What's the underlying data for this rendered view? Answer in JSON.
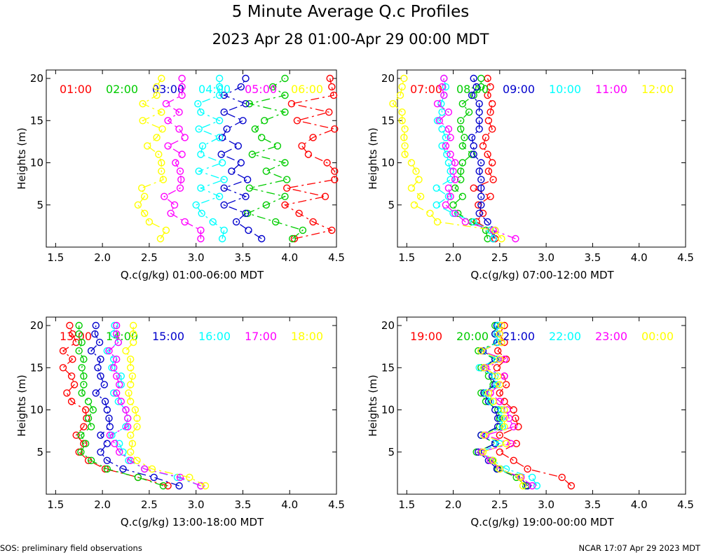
{
  "figure": {
    "title": "5 Minute Average Q.c Profiles",
    "subtitle": "2023 Apr 28 01:00-Apr 29 00:00 MDT",
    "footer_left": "SOS: preliminary field observations",
    "footer_right": "NCAR 17:07 Apr 29 2023 MDT"
  },
  "chart_data": [
    {
      "type": "scatter",
      "xlabel": "Q.c(g/kg) 01:00-06:00 MDT",
      "ylabel": "Heights (m)",
      "xlim": [
        1.4,
        4.5
      ],
      "ylim": [
        0,
        21
      ],
      "xticks": [
        "1.5",
        "2.0",
        "2.5",
        "3.0",
        "3.5",
        "4.0",
        "4.5"
      ],
      "yticks": [
        "5",
        "10",
        "15",
        "20"
      ],
      "heights": [
        1,
        2,
        3,
        4,
        5,
        6,
        7,
        8,
        9,
        10,
        11,
        12,
        13,
        14,
        15,
        16,
        17,
        18,
        19,
        20
      ],
      "series": [
        {
          "name": "01:00",
          "color": "#ff0000",
          "values": [
            4.05,
            4.45,
            4.25,
            4.1,
            3.95,
            4.38,
            3.97,
            4.48,
            4.48,
            4.4,
            4.2,
            4.13,
            4.25,
            4.48,
            4.08,
            4.42,
            4.02,
            4.47,
            4.45,
            4.43
          ]
        },
        {
          "name": "02:00",
          "color": "#00cc00",
          "values": [
            4.03,
            4.14,
            3.85,
            3.55,
            3.75,
            3.95,
            3.57,
            3.97,
            3.75,
            3.95,
            3.6,
            3.87,
            3.7,
            3.63,
            3.73,
            3.95,
            3.57,
            3.95,
            3.82,
            3.95
          ]
        },
        {
          "name": "03:00",
          "color": "#0000cc",
          "values": [
            3.7,
            3.56,
            3.43,
            3.53,
            3.3,
            3.53,
            3.3,
            3.55,
            3.38,
            3.48,
            3.27,
            3.45,
            3.28,
            3.33,
            3.5,
            3.3,
            3.53,
            3.3,
            3.48,
            3.53
          ]
        },
        {
          "name": "04:00",
          "color": "#00ffff",
          "values": [
            3.28,
            3.3,
            3.18,
            3.06,
            3.0,
            3.25,
            3.05,
            3.3,
            3.03,
            3.28,
            3.05,
            3.07,
            3.25,
            3.03,
            3.25,
            3.05,
            3.02,
            3.25,
            3.25,
            3.25
          ]
        },
        {
          "name": "05:00",
          "color": "#ff00ff",
          "values": [
            3.05,
            3.05,
            2.88,
            2.73,
            2.77,
            2.66,
            2.83,
            2.84,
            2.83,
            2.78,
            2.85,
            2.7,
            2.88,
            2.82,
            2.7,
            2.82,
            2.68,
            2.85,
            2.85,
            2.85
          ]
        },
        {
          "name": "06:00",
          "color": "#ffff00",
          "values": [
            2.62,
            2.68,
            2.5,
            2.45,
            2.38,
            2.45,
            2.42,
            2.65,
            2.63,
            2.63,
            2.6,
            2.48,
            2.58,
            2.64,
            2.43,
            2.63,
            2.43,
            2.58,
            2.58,
            2.63
          ]
        }
      ]
    },
    {
      "type": "scatter",
      "xlabel": "Q.c(g/kg) 07:00-12:00 MDT",
      "ylabel": "Heights (m)",
      "xlim": [
        1.4,
        4.5
      ],
      "ylim": [
        0,
        21
      ],
      "xticks": [
        "1.5",
        "2.0",
        "2.5",
        "3.0",
        "3.5",
        "4.0",
        "4.5"
      ],
      "yticks": [
        "5",
        "10",
        "15",
        "20"
      ],
      "heights": [
        1,
        2,
        3,
        4,
        5,
        6,
        7,
        8,
        9,
        10,
        11,
        12,
        13,
        14,
        15,
        16,
        17,
        18,
        19,
        20
      ],
      "series": [
        {
          "name": "07:00",
          "color": "#ff0000",
          "values": [
            2.45,
            2.4,
            2.25,
            2.32,
            2.27,
            2.4,
            2.22,
            2.43,
            2.38,
            2.42,
            2.37,
            2.32,
            2.35,
            2.42,
            2.38,
            2.4,
            2.42,
            2.37,
            2.4,
            2.37
          ]
        },
        {
          "name": "08:00",
          "color": "#00cc00",
          "values": [
            2.37,
            2.35,
            2.2,
            2.05,
            2.0,
            2.1,
            2.02,
            2.08,
            2.08,
            2.1,
            2.2,
            2.1,
            2.12,
            2.08,
            2.08,
            2.17,
            2.1,
            2.22,
            2.3,
            2.3
          ]
        },
        {
          "name": "09:00",
          "color": "#0000cc",
          "values": [
            2.43,
            2.45,
            2.37,
            2.28,
            2.3,
            2.3,
            2.3,
            2.3,
            2.28,
            2.3,
            2.22,
            2.22,
            2.2,
            2.28,
            2.28,
            2.28,
            2.28,
            2.2,
            2.25,
            2.22
          ]
        },
        {
          "name": "10:00",
          "color": "#00ffff",
          "values": [
            2.43,
            2.4,
            2.22,
            2.0,
            1.82,
            1.95,
            1.82,
            1.97,
            1.97,
            1.95,
            1.93,
            1.88,
            1.92,
            1.88,
            1.83,
            1.88,
            1.87,
            1.9,
            1.92,
            1.9
          ]
        },
        {
          "name": "11:00",
          "color": "#ff00ff",
          "values": [
            2.67,
            2.43,
            2.13,
            2.02,
            1.92,
            1.97,
            1.95,
            2.02,
            2.0,
            2.02,
            1.97,
            1.92,
            1.97,
            1.95,
            1.85,
            1.95,
            1.83,
            1.9,
            1.88,
            1.9
          ]
        },
        {
          "name": "12:00",
          "color": "#ffff00",
          "values": [
            2.52,
            2.45,
            1.83,
            1.75,
            1.58,
            1.65,
            1.55,
            1.63,
            1.6,
            1.55,
            1.48,
            1.48,
            1.47,
            1.48,
            1.45,
            1.45,
            1.35,
            1.43,
            1.45,
            1.47
          ]
        }
      ]
    },
    {
      "type": "scatter",
      "xlabel": "Q.c(g/kg) 13:00-18:00 MDT",
      "ylabel": "Heights (m)",
      "xlim": [
        1.4,
        4.5
      ],
      "ylim": [
        0,
        21
      ],
      "xticks": [
        "1.5",
        "2.0",
        "2.5",
        "3.0",
        "3.5",
        "4.0",
        "4.5"
      ],
      "yticks": [
        "5",
        "10",
        "15",
        "20"
      ],
      "heights": [
        1,
        2,
        3,
        4,
        5,
        6,
        7,
        8,
        9,
        10,
        11,
        12,
        13,
        14,
        15,
        16,
        17,
        18,
        19,
        20
      ],
      "series": [
        {
          "name": "13:00",
          "color": "#ff0000",
          "values": [
            2.7,
            2.38,
            2.03,
            1.85,
            1.75,
            1.8,
            1.72,
            1.8,
            1.83,
            1.82,
            1.67,
            1.62,
            1.7,
            1.67,
            1.58,
            1.68,
            1.58,
            1.72,
            1.68,
            1.65
          ]
        },
        {
          "name": "14:00",
          "color": "#00cc00",
          "values": [
            2.65,
            2.38,
            2.05,
            1.88,
            1.77,
            1.82,
            1.77,
            1.88,
            1.85,
            1.9,
            1.85,
            1.78,
            1.8,
            1.8,
            1.78,
            1.8,
            1.75,
            1.78,
            1.75,
            1.75
          ]
        },
        {
          "name": "15:00",
          "color": "#0000cc",
          "values": [
            2.82,
            2.55,
            2.22,
            2.05,
            1.98,
            2.05,
            1.98,
            2.08,
            2.07,
            2.05,
            2.03,
            1.93,
            2.02,
            1.98,
            1.95,
            1.98,
            1.88,
            1.97,
            1.92,
            1.93
          ]
        },
        {
          "name": "16:00",
          "color": "#00ffff",
          "values": [
            3.05,
            2.8,
            2.45,
            2.28,
            2.22,
            2.18,
            2.1,
            2.25,
            2.27,
            2.25,
            2.17,
            2.12,
            2.2,
            2.2,
            2.1,
            2.12,
            2.05,
            2.17,
            2.12,
            2.13
          ]
        },
        {
          "name": "17:00",
          "color": "#ff00ff",
          "values": [
            3.05,
            2.83,
            2.45,
            2.3,
            2.18,
            2.13,
            2.08,
            2.27,
            2.27,
            2.25,
            2.2,
            2.15,
            2.18,
            2.15,
            2.12,
            2.15,
            2.07,
            2.17,
            2.15,
            2.15
          ]
        },
        {
          "name": "18:00",
          "color": "#ffff00",
          "values": [
            3.1,
            2.93,
            2.53,
            2.37,
            2.3,
            2.32,
            2.3,
            2.37,
            2.37,
            2.35,
            2.3,
            2.28,
            2.3,
            2.32,
            2.3,
            2.3,
            2.25,
            2.33,
            2.33,
            2.33
          ]
        }
      ]
    },
    {
      "type": "scatter",
      "xlabel": "Q.c(g/kg) 19:00-00:00 MDT",
      "ylabel": "Heights (m)",
      "xlim": [
        1.4,
        4.5
      ],
      "ylim": [
        0,
        21
      ],
      "xticks": [
        "1.5",
        "2.0",
        "2.5",
        "3.0",
        "3.5",
        "4.0",
        "4.5"
      ],
      "yticks": [
        "5",
        "10",
        "15",
        "20"
      ],
      "heights": [
        1,
        2,
        3,
        4,
        5,
        6,
        7,
        8,
        9,
        10,
        11,
        12,
        13,
        14,
        15,
        16,
        17,
        18,
        19,
        20
      ],
      "series": [
        {
          "name": "19:00",
          "color": "#ff0000",
          "values": [
            3.27,
            3.17,
            2.8,
            2.65,
            2.5,
            2.68,
            2.5,
            2.7,
            2.67,
            2.65,
            2.55,
            2.5,
            2.57,
            2.55,
            2.47,
            2.57,
            2.48,
            2.55,
            2.5,
            2.55
          ]
        },
        {
          "name": "20:00",
          "color": "#00cc00",
          "values": [
            2.78,
            2.68,
            2.48,
            2.42,
            2.25,
            2.45,
            2.3,
            2.5,
            2.5,
            2.48,
            2.35,
            2.3,
            2.43,
            2.38,
            2.3,
            2.45,
            2.27,
            2.47,
            2.45,
            2.45
          ]
        },
        {
          "name": "21:00",
          "color": "#0000cc",
          "values": [
            2.8,
            2.72,
            2.47,
            2.38,
            2.27,
            2.45,
            2.3,
            2.48,
            2.48,
            2.45,
            2.38,
            2.33,
            2.45,
            2.42,
            2.33,
            2.45,
            2.32,
            2.47,
            2.45,
            2.47
          ]
        },
        {
          "name": "22:00",
          "color": "#00ffff",
          "values": [
            2.9,
            2.85,
            2.57,
            2.43,
            2.3,
            2.5,
            2.33,
            2.53,
            2.52,
            2.52,
            2.4,
            2.35,
            2.47,
            2.45,
            2.28,
            2.47,
            2.3,
            2.48,
            2.47,
            2.48
          ]
        },
        {
          "name": "23:00",
          "color": "#ff00ff",
          "values": [
            2.85,
            2.73,
            2.5,
            2.4,
            2.3,
            2.62,
            2.35,
            2.65,
            2.6,
            2.58,
            2.5,
            2.4,
            2.5,
            2.55,
            2.35,
            2.55,
            2.3,
            2.52,
            2.5,
            2.52
          ]
        },
        {
          "name": "00:00",
          "color": "#ffff00",
          "values": [
            2.75,
            2.72,
            2.5,
            2.43,
            2.32,
            2.57,
            2.33,
            2.55,
            2.55,
            2.55,
            2.43,
            2.38,
            2.5,
            2.48,
            2.33,
            2.5,
            2.3,
            2.52,
            2.5,
            2.52
          ]
        }
      ]
    }
  ]
}
